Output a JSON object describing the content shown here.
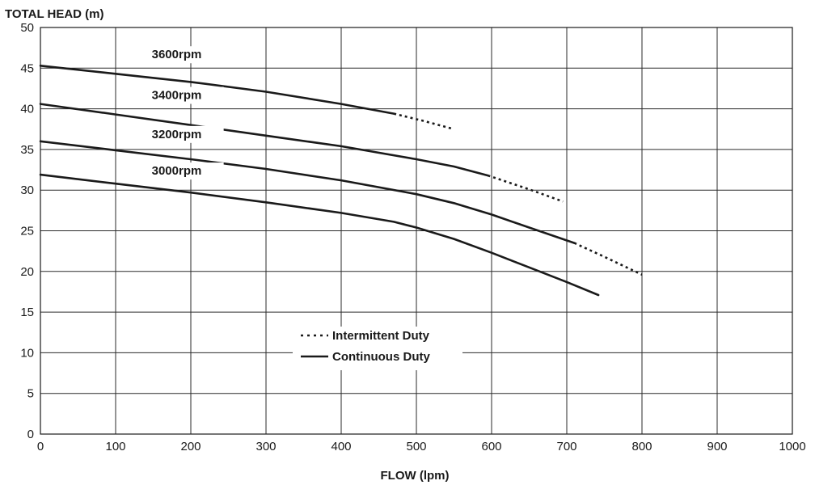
{
  "chart_data": {
    "type": "line",
    "title": "",
    "ylabel": "TOTAL HEAD (m)",
    "xlabel": "FLOW (lpm)",
    "xlim": [
      0,
      1000
    ],
    "ylim": [
      0,
      50
    ],
    "x_ticks": [
      0,
      100,
      200,
      300,
      400,
      500,
      600,
      700,
      800,
      900,
      1000
    ],
    "y_ticks": [
      0,
      5,
      10,
      15,
      20,
      25,
      30,
      35,
      40,
      45,
      50
    ],
    "grid": true,
    "legend_position": "lower-center",
    "legend": [
      {
        "label": "Intermittent Duty",
        "style": "dotted"
      },
      {
        "label": "Continuous Duty",
        "style": "solid"
      }
    ],
    "series": [
      {
        "name": "3600rpm",
        "continuous": [
          [
            0,
            45.3
          ],
          [
            100,
            44.3
          ],
          [
            200,
            43.3
          ],
          [
            300,
            42.1
          ],
          [
            400,
            40.6
          ],
          [
            470,
            39.4
          ]
        ],
        "intermittent": [
          [
            470,
            39.4
          ],
          [
            510,
            38.5
          ],
          [
            550,
            37.5
          ]
        ]
      },
      {
        "name": "3400rpm",
        "continuous": [
          [
            0,
            40.6
          ],
          [
            100,
            39.3
          ],
          [
            200,
            38.0
          ],
          [
            300,
            36.7
          ],
          [
            400,
            35.4
          ],
          [
            500,
            33.8
          ],
          [
            550,
            32.9
          ],
          [
            595,
            31.8
          ]
        ],
        "intermittent": [
          [
            595,
            31.8
          ],
          [
            650,
            30.1
          ],
          [
            695,
            28.6
          ]
        ]
      },
      {
        "name": "3200rpm",
        "continuous": [
          [
            0,
            36.0
          ],
          [
            100,
            34.9
          ],
          [
            200,
            33.8
          ],
          [
            300,
            32.6
          ],
          [
            400,
            31.2
          ],
          [
            500,
            29.5
          ],
          [
            550,
            28.4
          ],
          [
            600,
            27.0
          ],
          [
            650,
            25.4
          ],
          [
            710,
            23.5
          ]
        ],
        "intermittent": [
          [
            710,
            23.5
          ],
          [
            750,
            21.8
          ],
          [
            800,
            19.6
          ]
        ]
      },
      {
        "name": "3000rpm",
        "continuous": [
          [
            0,
            31.9
          ],
          [
            100,
            30.8
          ],
          [
            200,
            29.7
          ],
          [
            300,
            28.5
          ],
          [
            400,
            27.2
          ],
          [
            470,
            26.1
          ],
          [
            500,
            25.4
          ],
          [
            550,
            24.0
          ],
          [
            600,
            22.3
          ],
          [
            650,
            20.5
          ],
          [
            700,
            18.7
          ],
          [
            742,
            17.1
          ]
        ],
        "intermittent": []
      }
    ],
    "curve_labels": [
      {
        "text": "3600rpm",
        "x": 148,
        "y": 46.2
      },
      {
        "text": "3400rpm",
        "x": 148,
        "y": 41.2
      },
      {
        "text": "3200rpm",
        "x": 148,
        "y": 36.4
      },
      {
        "text": "3000rpm",
        "x": 148,
        "y": 31.9
      }
    ],
    "line_color": "#1a1a1a"
  }
}
